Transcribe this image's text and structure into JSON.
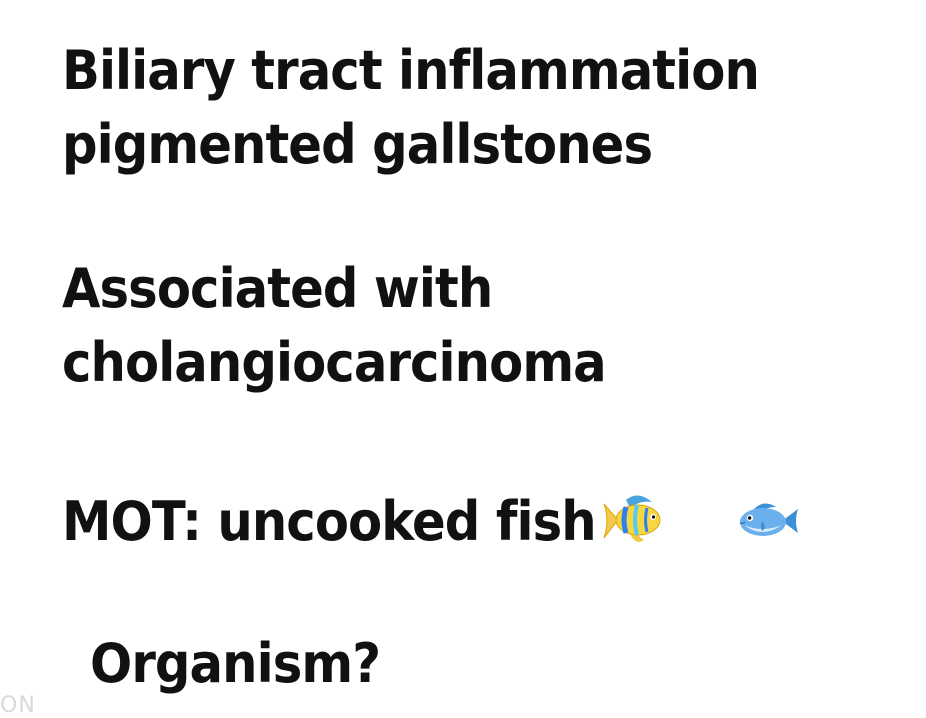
{
  "slide": {
    "lines": [
      "Biliary tract inflammation",
      "pigmented gallstones",
      "Associated with",
      "cholangiocarcinoma",
      "MOT: uncooked fish",
      "Organism?"
    ],
    "icons": [
      "tropical-fish-icon",
      "fish-icon"
    ],
    "watermark": "ON"
  }
}
